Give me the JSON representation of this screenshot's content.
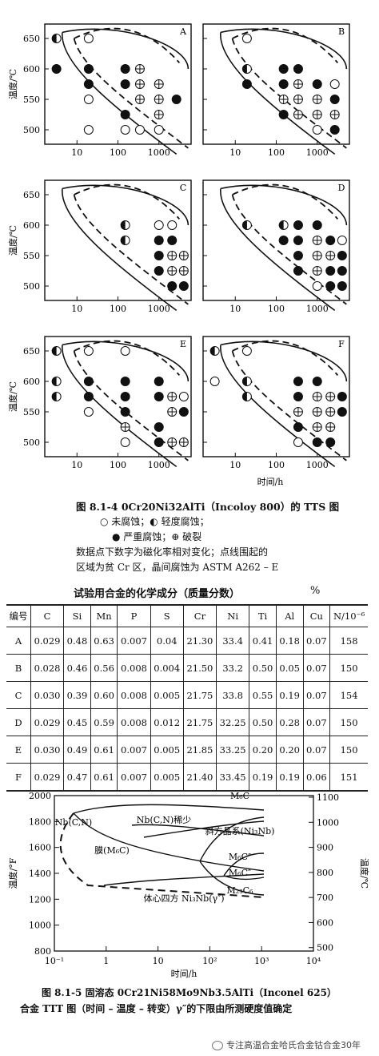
{
  "tts_panels": {
    "ylabel": "温度/℃",
    "xlabel": "时间/h",
    "y_ticks": [
      "650",
      "600",
      "550",
      "500"
    ],
    "x_ticks": [
      "10",
      "100",
      "1000"
    ],
    "panel_letters": [
      "A",
      "B",
      "C",
      "D",
      "E",
      "F"
    ]
  },
  "figure_841": {
    "caption_title": "图 8.1-4   0Cr20Ni32AlTi（Incoloy 800）的 TTS 图",
    "legend_line1": "○ 未腐蚀；◐ 轻度腐蚀；",
    "legend_line2": "● 严重腐蚀；⊕ 破裂",
    "note_line1": "数据点下数字为磁化率相对变化；点线围起的",
    "note_line2": "区域为贫 Cr 区，晶间腐蚀为 ASTM A262 – E"
  },
  "chem_table": {
    "title": "试验用合金的化学成分（质量分数）",
    "unit": "%",
    "headers": [
      "编号",
      "C",
      "Si",
      "Mn",
      "P",
      "S",
      "Cr",
      "Ni",
      "Ti",
      "Al",
      "Cu",
      "N/10⁻⁶"
    ],
    "rows": [
      [
        "A",
        "0.029",
        "0.48",
        "0.63",
        "0.007",
        "0.04",
        "21.30",
        "33.4",
        "0.41",
        "0.18",
        "0.07",
        "158"
      ],
      [
        "B",
        "0.028",
        "0.46",
        "0.56",
        "0.008",
        "0.004",
        "21.50",
        "33.2",
        "0.50",
        "0.05",
        "0.07",
        "150"
      ],
      [
        "C",
        "0.030",
        "0.39",
        "0.60",
        "0.008",
        "0.005",
        "21.75",
        "33.8",
        "0.55",
        "0.19",
        "0.07",
        "154"
      ],
      [
        "D",
        "0.029",
        "0.45",
        "0.59",
        "0.008",
        "0.012",
        "21.75",
        "32.25",
        "0.50",
        "0.28",
        "0.07",
        "150"
      ],
      [
        "E",
        "0.030",
        "0.49",
        "0.61",
        "0.007",
        "0.005",
        "21.85",
        "33.25",
        "0.20",
        "0.20",
        "0.07",
        "150"
      ],
      [
        "F",
        "0.029",
        "0.47",
        "0.61",
        "0.007",
        "0.005",
        "21.40",
        "33.45",
        "0.19",
        "0.19",
        "0.06",
        "151"
      ]
    ]
  },
  "chart_data": {
    "type": "line",
    "ylabel_left": "温度/°F",
    "ylabel_right": "温度/℃",
    "xlabel": "时间/h",
    "x_scale": "log",
    "x_ticks": [
      "10⁻¹",
      "1",
      "10",
      "10²",
      "10³",
      "10⁴"
    ],
    "y_left_ticks": [
      "2000",
      "1800",
      "1600",
      "1400",
      "1200",
      "1000",
      "800"
    ],
    "y_right_ticks": [
      "1100",
      "1000",
      "900",
      "800",
      "700",
      "600",
      "500"
    ],
    "annotations": [
      "M₆C",
      "Nb(C,N)",
      "Nb(C,N)稀少",
      "斜方晶系(Ni₃Nb)",
      "膜(M₆C)",
      "M₆C″",
      "M₆C″",
      "体心四方 Ni₃Nb(γ″)",
      "M₂₃C₆"
    ]
  },
  "figure_815": {
    "caption_line1": "图 8.1-5   固溶态 0Cr21Ni58Mo9Nb3.5AlTi（Inconel 625）",
    "caption_line2": "合金 TTT 图（时间 – 温度 – 转变）γ″的下限由所测硬度值确定"
  },
  "watermark": "专注高温合金哈氏合金钴合金30年"
}
